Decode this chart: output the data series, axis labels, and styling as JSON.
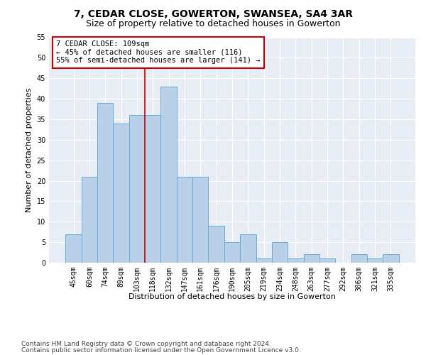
{
  "title": "7, CEDAR CLOSE, GOWERTON, SWANSEA, SA4 3AR",
  "subtitle": "Size of property relative to detached houses in Gowerton",
  "xlabel": "Distribution of detached houses by size in Gowerton",
  "ylabel": "Number of detached properties",
  "footer_line1": "Contains HM Land Registry data © Crown copyright and database right 2024.",
  "footer_line2": "Contains public sector information licensed under the Open Government Licence v3.0.",
  "categories": [
    "45sqm",
    "60sqm",
    "74sqm",
    "89sqm",
    "103sqm",
    "118sqm",
    "132sqm",
    "147sqm",
    "161sqm",
    "176sqm",
    "190sqm",
    "205sqm",
    "219sqm",
    "234sqm",
    "248sqm",
    "263sqm",
    "277sqm",
    "292sqm",
    "306sqm",
    "321sqm",
    "335sqm"
  ],
  "values": [
    7,
    21,
    39,
    34,
    36,
    36,
    43,
    21,
    21,
    9,
    5,
    7,
    1,
    5,
    1,
    2,
    1,
    0,
    2,
    1,
    2
  ],
  "ylim": [
    0,
    55
  ],
  "yticks": [
    0,
    5,
    10,
    15,
    20,
    25,
    30,
    35,
    40,
    45,
    50,
    55
  ],
  "bar_color": "#b8d0e8",
  "bar_edge_color": "#6aaad4",
  "bg_color": "#e8ecf4",
  "vline_x": 4.5,
  "annotation_text": "7 CEDAR CLOSE: 109sqm\n← 45% of detached houses are smaller (116)\n55% of semi-detached houses are larger (141) →",
  "annotation_box_color": "#ffffff",
  "annotation_box_edge": "#cc0000",
  "vline_color": "#cc0000",
  "title_fontsize": 10,
  "subtitle_fontsize": 9,
  "axis_label_fontsize": 8,
  "tick_fontsize": 7,
  "annotation_fontsize": 7.5,
  "footer_fontsize": 6.5
}
